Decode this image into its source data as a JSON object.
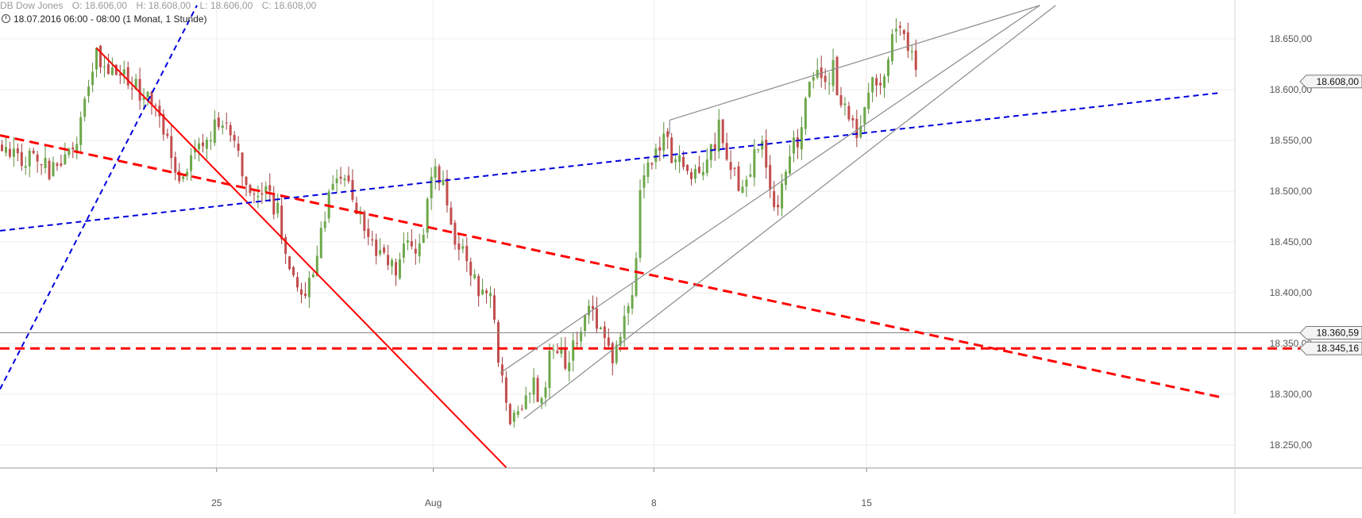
{
  "header": {
    "instrument": "DB Dow Jones",
    "open": "O: 18.606,00",
    "high": "H: 18.608,00",
    "low": "L: 18.606,00",
    "close": "C: 18.608,00",
    "period": "18.07.2016 06:00 - 08:00 (1 Monat, 1 Stunde)"
  },
  "chart_data": {
    "type": "candlestick",
    "title": "",
    "xlabel": "",
    "ylabel": "",
    "ylim": [
      18235,
      18680
    ],
    "yticks": [
      18250,
      18300,
      18350,
      18400,
      18450,
      18500,
      18550,
      18600,
      18650
    ],
    "ytick_labels": [
      "18.250,00",
      "18.300,00",
      "18.350,00",
      "18.400,00",
      "18.450,00",
      "18.500,00",
      "18.550,00",
      "18.600,00",
      "18.650,00"
    ],
    "xticks": [
      {
        "label": "25",
        "index": 55
      },
      {
        "label": "Aug",
        "index": 110
      },
      {
        "label": "8",
        "index": 166
      },
      {
        "label": "15",
        "index": 220
      }
    ],
    "x_range": [
      0,
      310
    ],
    "grid": true,
    "price_labels": [
      {
        "label": "18.608,00",
        "value": 18608,
        "kind": "last"
      },
      {
        "label": "18.360,59",
        "value": 18360.59,
        "kind": "hline"
      },
      {
        "label": "18.345,16",
        "value": 18345.16,
        "kind": "hline"
      }
    ],
    "horizontal_lines": [
      {
        "value": 18360.59,
        "color": "#8c8c8c",
        "style": "solid"
      },
      {
        "value": 18345.16,
        "color": "#ff0000",
        "style": "dashed"
      }
    ],
    "trendlines": [
      {
        "color": "#ff0000",
        "style": "solid",
        "x1": 24.5,
        "y1": 18641,
        "x2": 128.5,
        "y2": 18228
      },
      {
        "color": "#ff0000",
        "style": "dashed",
        "x1": 0,
        "y1": 18555,
        "x2": 310,
        "y2": 18297
      },
      {
        "color": "#0000dd",
        "style": "dashed",
        "x1": 0,
        "y1": 18461,
        "x2": 310,
        "y2": 18597
      },
      {
        "color": "#0000dd",
        "style": "dashed",
        "x1": 0,
        "y1": 18305,
        "x2": 50,
        "y2": 18683
      },
      {
        "color": "#8c8c8c",
        "style": "solid",
        "x1": 127,
        "y1": 18321,
        "x2": 264,
        "y2": 18683
      },
      {
        "color": "#8c8c8c",
        "style": "solid",
        "x1": 133,
        "y1": 18276,
        "x2": 268,
        "y2": 18683
      },
      {
        "color": "#8c8c8c",
        "style": "solid",
        "x1": 170,
        "y1": 18570,
        "x2": 264,
        "y2": 18683
      },
      {
        "color": "#8c8c8c",
        "style": "solid",
        "x1": 170,
        "y1": 18570,
        "x2": 170,
        "y2": 18556
      }
    ],
    "candle_colors": {
      "up": "#6da84a",
      "down": "#c24d4d",
      "up_wick": "#5a8f3d",
      "down_wick": "#a03c3c"
    },
    "series": [
      {
        "name": "",
        "waypoints": [
          [
            0,
            18548
          ],
          [
            3,
            18538
          ],
          [
            7,
            18532
          ],
          [
            12,
            18520
          ],
          [
            15,
            18530
          ],
          [
            19,
            18545
          ],
          [
            22,
            18600
          ],
          [
            24,
            18638
          ],
          [
            27,
            18620
          ],
          [
            31,
            18610
          ],
          [
            34,
            18600
          ],
          [
            37,
            18595
          ],
          [
            40,
            18575
          ],
          [
            43,
            18530
          ],
          [
            46,
            18510
          ],
          [
            49,
            18540
          ],
          [
            52,
            18550
          ],
          [
            55,
            18565
          ],
          [
            58,
            18560
          ],
          [
            61,
            18515
          ],
          [
            64,
            18495
          ],
          [
            67,
            18500
          ],
          [
            70,
            18480
          ],
          [
            73,
            18430
          ],
          [
            76,
            18400
          ],
          [
            79,
            18420
          ],
          [
            82,
            18480
          ],
          [
            85,
            18520
          ],
          [
            88,
            18510
          ],
          [
            91,
            18470
          ],
          [
            94,
            18450
          ],
          [
            97,
            18440
          ],
          [
            100,
            18420
          ],
          [
            103,
            18460
          ],
          [
            106,
            18440
          ],
          [
            109,
            18520
          ],
          [
            112,
            18510
          ],
          [
            115,
            18450
          ],
          [
            118,
            18430
          ],
          [
            121,
            18400
          ],
          [
            124,
            18390
          ],
          [
            127,
            18310
          ],
          [
            129,
            18265
          ],
          [
            131,
            18280
          ],
          [
            134,
            18310
          ],
          [
            137,
            18300
          ],
          [
            140,
            18350
          ],
          [
            143,
            18330
          ],
          [
            146,
            18360
          ],
          [
            149,
            18390
          ],
          [
            152,
            18360
          ],
          [
            155,
            18340
          ],
          [
            158,
            18380
          ],
          [
            160,
            18400
          ],
          [
            162,
            18490
          ],
          [
            164,
            18530
          ],
          [
            166,
            18540
          ],
          [
            168,
            18555
          ],
          [
            171,
            18530
          ],
          [
            174,
            18515
          ],
          [
            177,
            18525
          ],
          [
            180,
            18540
          ],
          [
            182,
            18560
          ],
          [
            184,
            18530
          ],
          [
            187,
            18510
          ],
          [
            190,
            18525
          ],
          [
            193,
            18545
          ],
          [
            195,
            18500
          ],
          [
            197,
            18475
          ],
          [
            199,
            18520
          ],
          [
            201,
            18545
          ],
          [
            203,
            18560
          ],
          [
            205,
            18605
          ],
          [
            207,
            18615
          ],
          [
            209,
            18610
          ],
          [
            211,
            18620
          ],
          [
            213,
            18590
          ],
          [
            215,
            18565
          ],
          [
            217,
            18555
          ],
          [
            219,
            18585
          ],
          [
            221,
            18610
          ],
          [
            223,
            18605
          ],
          [
            225,
            18640
          ],
          [
            227,
            18664
          ],
          [
            229,
            18655
          ],
          [
            231,
            18632
          ],
          [
            232,
            18616
          ]
        ]
      }
    ]
  }
}
